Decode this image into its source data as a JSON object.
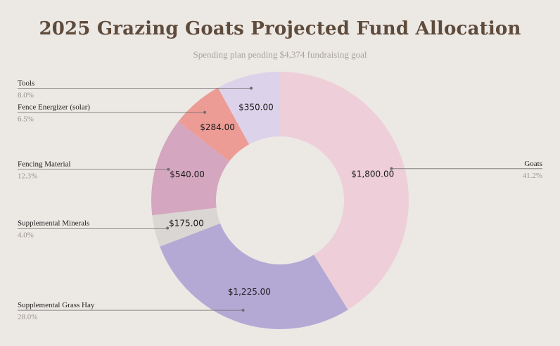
{
  "chart_data": {
    "type": "pie",
    "donut": true,
    "title": "2025 Grazing Goats Projected Fund Allocation",
    "subtitle": "Spending plan pending $4,374 fundraising goal",
    "slices": [
      {
        "name": "Goats",
        "value": 1800,
        "value_label": "$1,800.00",
        "percent_label": "41.2%",
        "color": "#eecfd9"
      },
      {
        "name": "Supplemental Grass Hay",
        "value": 1225,
        "value_label": "$1,225.00",
        "percent_label": "28.0%",
        "color": "#b4a9d5"
      },
      {
        "name": "Supplemental Minerals",
        "value": 175,
        "value_label": "$175.00",
        "percent_label": "4.0%",
        "color": "#d9d6d4"
      },
      {
        "name": "Fencing Material",
        "value": 540,
        "value_label": "$540.00",
        "percent_label": "12.3%",
        "color": "#d5a6bf"
      },
      {
        "name": "Fence Energizer (solar)",
        "value": 284,
        "value_label": "$284.00",
        "percent_label": "6.5%",
        "color": "#ec9c95"
      },
      {
        "name": "Tools",
        "value": 350,
        "value_label": "$350.00",
        "percent_label": "8.0%",
        "color": "#dcd2e9"
      }
    ],
    "legend": "none"
  }
}
